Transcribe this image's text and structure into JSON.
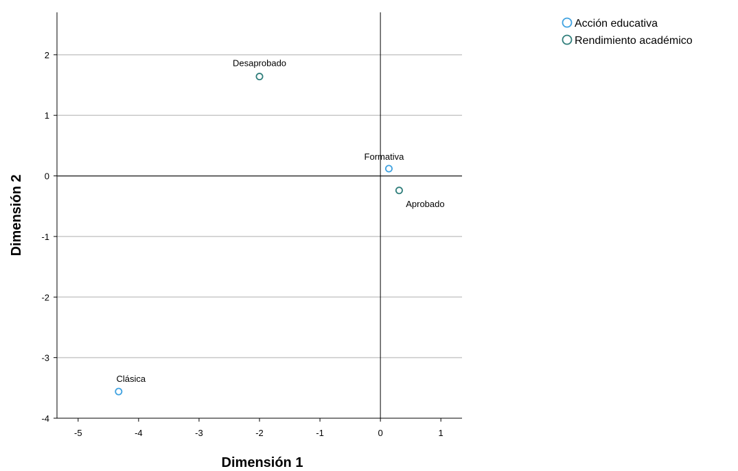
{
  "chart_data": {
    "type": "scatter",
    "title": "",
    "xlabel": "Dimensión 1",
    "ylabel": "Dimensión 2",
    "xlim": [
      -5.35,
      1.35
    ],
    "ylim": [
      -4,
      2.7
    ],
    "xticks": [
      -5,
      -4,
      -3,
      -2,
      -1,
      0,
      1
    ],
    "yticks": [
      -4,
      -3,
      -2,
      -1,
      0,
      1,
      2
    ],
    "grid": "horizontal",
    "legend_position": "top-right",
    "series": [
      {
        "name": "Acción educativa",
        "color": "#3ea1e0",
        "points": [
          {
            "label": "Formativa",
            "x": 0.14,
            "y": 0.12
          },
          {
            "label": "Clásica",
            "x": -4.33,
            "y": -3.56
          }
        ]
      },
      {
        "name": "Rendimiento académico",
        "color": "#2e7d7a",
        "points": [
          {
            "label": "Desaprobado",
            "x": -2.0,
            "y": 1.64
          },
          {
            "label": "Aprobado",
            "x": 0.31,
            "y": -0.24
          }
        ]
      }
    ]
  }
}
